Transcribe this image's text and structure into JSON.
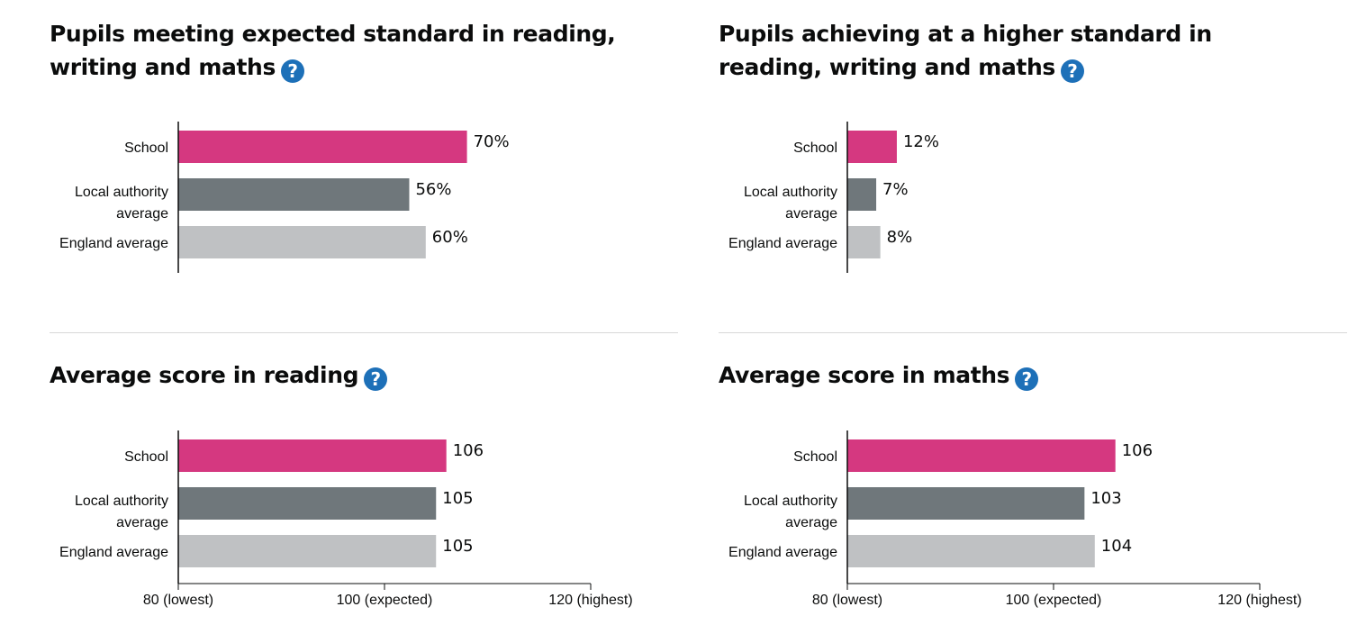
{
  "help_glyph": "?",
  "colors": {
    "school": "#d53880",
    "local_authority": "#6f777b",
    "england": "#bfc1c3",
    "help_icon": "#1d70b8"
  },
  "panels": [
    {
      "title": "Pupils meeting expected standard in reading, writing and maths"
    },
    {
      "title": "Pupils achieving at a higher standard in reading, writing and maths"
    },
    {
      "title": "Average score in reading"
    },
    {
      "title": "Average score in maths"
    }
  ],
  "chart_data": [
    {
      "type": "bar",
      "orientation": "horizontal",
      "title": "Pupils meeting expected standard in reading, writing and maths",
      "categories": [
        [
          "School"
        ],
        [
          "Local authority",
          "average"
        ],
        [
          "England average"
        ]
      ],
      "values": [
        70,
        56,
        60
      ],
      "value_labels": [
        "70%",
        "56%",
        "60%"
      ],
      "xlim": [
        0,
        100
      ],
      "ticks": []
    },
    {
      "type": "bar",
      "orientation": "horizontal",
      "title": "Pupils achieving at a higher standard in reading, writing and maths",
      "categories": [
        [
          "School"
        ],
        [
          "Local authority",
          "average"
        ],
        [
          "England average"
        ]
      ],
      "values": [
        12,
        7,
        8
      ],
      "value_labels": [
        "12%",
        "7%",
        "8%"
      ],
      "xlim": [
        0,
        100
      ],
      "ticks": []
    },
    {
      "type": "bar",
      "orientation": "horizontal",
      "title": "Average score in reading",
      "categories": [
        [
          "School"
        ],
        [
          "Local authority",
          "average"
        ],
        [
          "England average"
        ]
      ],
      "values": [
        106,
        105,
        105
      ],
      "value_labels": [
        "106",
        "105",
        "105"
      ],
      "xlim": [
        80,
        120
      ],
      "ticks": [
        {
          "value": 80,
          "label": "80 (lowest)"
        },
        {
          "value": 100,
          "label": "100 (expected)"
        },
        {
          "value": 120,
          "label": "120 (highest)"
        }
      ]
    },
    {
      "type": "bar",
      "orientation": "horizontal",
      "title": "Average score in maths",
      "categories": [
        [
          "School"
        ],
        [
          "Local authority",
          "average"
        ],
        [
          "England average"
        ]
      ],
      "values": [
        106,
        103,
        104
      ],
      "value_labels": [
        "106",
        "103",
        "104"
      ],
      "xlim": [
        80,
        120
      ],
      "ticks": [
        {
          "value": 80,
          "label": "80 (lowest)"
        },
        {
          "value": 100,
          "label": "100 (expected)"
        },
        {
          "value": 120,
          "label": "120 (highest)"
        }
      ]
    }
  ]
}
